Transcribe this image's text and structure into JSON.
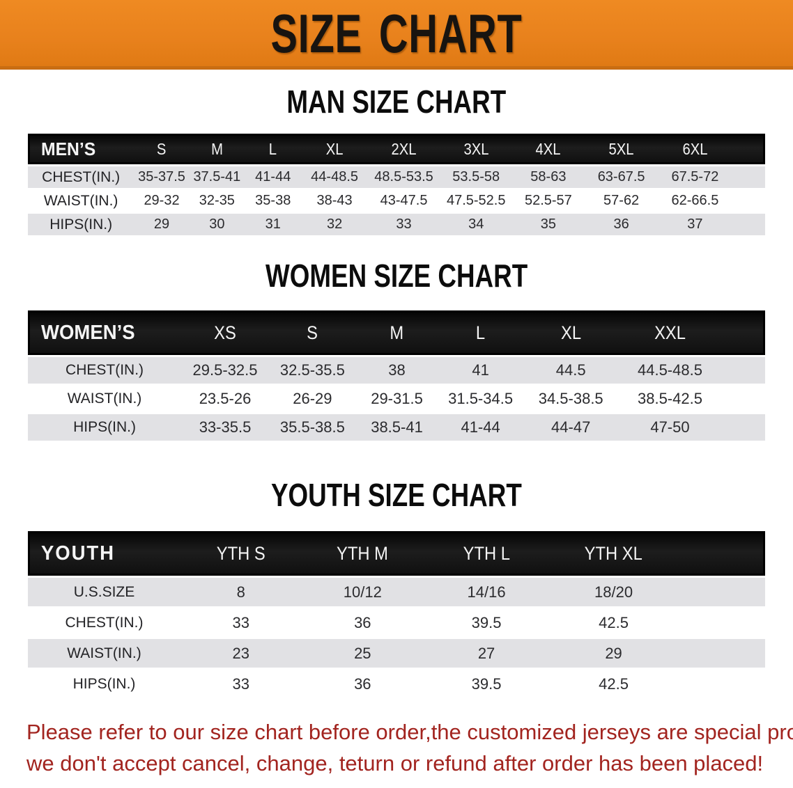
{
  "banner": {
    "title": "SIZE CHART"
  },
  "colors": {
    "banner_orange": "#e8811c",
    "banner_edge": "#c96d12",
    "header_bar_black": "#141414",
    "stripe_gray": "#e1e1e4",
    "value_text": "#2b2b2e",
    "disclaimer_red": "#a2241f"
  },
  "sections": [
    {
      "id": "men",
      "title": "MAN SIZE CHART",
      "columns": [
        "MEN’S",
        "S",
        "M",
        "L",
        "XL",
        "2XL",
        "3XL",
        "4XL",
        "5XL",
        "6XL"
      ],
      "rows": [
        {
          "label": "CHEST(IN.)",
          "values": [
            "35-37.5",
            "37.5-41",
            "41-44",
            "44-48.5",
            "48.5-53.5",
            "53.5-58",
            "58-63",
            "63-67.5",
            "67.5-72"
          ]
        },
        {
          "label": "WAIST(IN.)",
          "values": [
            "29-32",
            "32-35",
            "35-38",
            "38-43",
            "43-47.5",
            "47.5-52.5",
            "52.5-57",
            "57-62",
            "62-66.5"
          ]
        },
        {
          "label": "HIPS(IN.)",
          "values": [
            "29",
            "30",
            "31",
            "32",
            "33",
            "34",
            "35",
            "36",
            "37"
          ]
        }
      ]
    },
    {
      "id": "women",
      "title": "WOMEN SIZE CHART",
      "columns": [
        "WOMEN’S",
        "XS",
        "S",
        "M",
        "L",
        "XL",
        "XXL"
      ],
      "rows": [
        {
          "label": "CHEST(IN.)",
          "values": [
            "29.5-32.5",
            "32.5-35.5",
            "38",
            "41",
            "44.5",
            "44.5-48.5"
          ]
        },
        {
          "label": "WAIST(IN.)",
          "values": [
            "23.5-26",
            "26-29",
            "29-31.5",
            "31.5-34.5",
            "34.5-38.5",
            "38.5-42.5"
          ]
        },
        {
          "label": "HIPS(IN.)",
          "values": [
            "33-35.5",
            "35.5-38.5",
            "38.5-41",
            "41-44",
            "44-47",
            "47-50"
          ]
        }
      ]
    },
    {
      "id": "youth",
      "title": "YOUTH SIZE CHART",
      "columns": [
        "YOUTH",
        "YTH S",
        "YTH M",
        "YTH L",
        "YTH XL"
      ],
      "rows": [
        {
          "label": "U.S.SIZE",
          "values": [
            "8",
            "10/12",
            "14/16",
            "18/20"
          ]
        },
        {
          "label": "CHEST(IN.)",
          "values": [
            "33",
            "36",
            "39.5",
            "42.5"
          ]
        },
        {
          "label": "WAIST(IN.)",
          "values": [
            "23",
            "25",
            "27",
            "29"
          ]
        },
        {
          "label": "HIPS(IN.)",
          "values": [
            "33",
            "36",
            "39.5",
            "42.5"
          ]
        }
      ]
    }
  ],
  "disclaimer": {
    "line1": "Please refer to our size chart before order,the customized jerseys are special products,",
    "line2": "we don't accept cancel, change, teturn or refund after order has been placed!"
  }
}
